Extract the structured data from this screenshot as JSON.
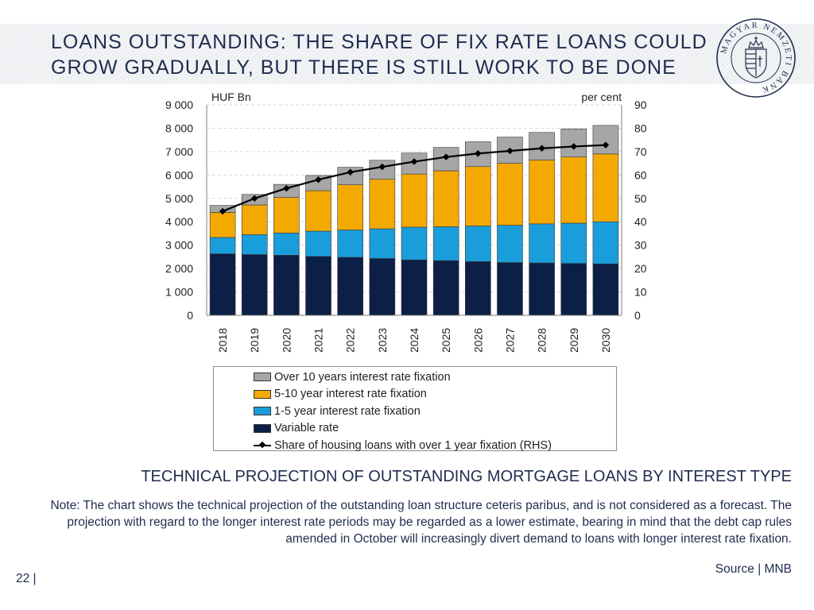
{
  "header": {
    "title": "LOANS OUTSTANDING: THE SHARE OF FIX RATE LOANS COULD GROW GRADUALLY, BUT THERE IS STILL WORK TO BE DONE"
  },
  "logo": {
    "text": "MAGYAR NEMZETI BANK"
  },
  "chart_subtitle": "TECHNICAL PROJECTION OF OUTSTANDING MORTGAGE LOANS BY INTEREST TYPE",
  "note": "Note: The chart shows the technical projection of the outstanding loan structure ceteris paribus, and is not considered as a forecast. The projection with regard to the longer interest rate periods may be regarded as a lower estimate, bearing in mind that the debt cap rules amended in October will increasingly divert demand to loans with longer interest rate fixation.",
  "source": "Source | MNB",
  "page_number": "22 |",
  "colors": {
    "variable": "#0c1f47",
    "fix_1_5": "#1a9ddb",
    "fix_5_10": "#f4a900",
    "fix_over_10": "#a6a6a6",
    "share_line": "#000000"
  },
  "chart_data": {
    "type": "bar",
    "stacked": true,
    "categories": [
      "2018",
      "2019",
      "2020",
      "2021",
      "2022",
      "2023",
      "2024",
      "2025",
      "2026",
      "2027",
      "2028",
      "2029",
      "2030"
    ],
    "ylabel_left": "HUF Bn",
    "ylabel_right": "per cent",
    "ylim_left": [
      0,
      9000
    ],
    "ylim_right": [
      0,
      90
    ],
    "yticks_left": [
      "0",
      "1 000",
      "2 000",
      "3 000",
      "4 000",
      "5 000",
      "6 000",
      "7 000",
      "8 000",
      "9 000"
    ],
    "yticks_right": [
      "0",
      "10",
      "20",
      "30",
      "40",
      "50",
      "60",
      "70",
      "80",
      "90"
    ],
    "gridlines": true,
    "legend_position": "bottom",
    "series": [
      {
        "name": "Variable rate",
        "color_key": "variable",
        "values": [
          2630,
          2600,
          2570,
          2520,
          2480,
          2430,
          2370,
          2340,
          2300,
          2260,
          2240,
          2220,
          2200
        ]
      },
      {
        "name": "1-5 year interest rate fixation",
        "color_key": "fix_1_5",
        "values": [
          700,
          850,
          950,
          1080,
          1170,
          1270,
          1400,
          1450,
          1520,
          1590,
          1670,
          1720,
          1800
        ]
      },
      {
        "name": "5-10 year interest rate fixation",
        "color_key": "fix_5_10",
        "values": [
          1070,
          1270,
          1520,
          1730,
          1930,
          2120,
          2270,
          2390,
          2540,
          2650,
          2730,
          2830,
          2900
        ]
      },
      {
        "name": "Over 10 years interest rate fixation",
        "color_key": "fix_over_10",
        "values": [
          300,
          450,
          560,
          650,
          750,
          810,
          900,
          1000,
          1060,
          1120,
          1180,
          1200,
          1220
        ]
      }
    ],
    "line_series": {
      "name": "Share of housing loans with over 1 year fixation (RHS)",
      "axis": "right",
      "values": [
        44.5,
        50.0,
        54.3,
        58.0,
        61.2,
        63.5,
        65.7,
        67.7,
        69.2,
        70.3,
        71.4,
        72.2,
        72.8
      ]
    },
    "legend_order": [
      "Over 10 years interest rate fixation",
      "5-10 year interest rate fixation",
      "1-5 year interest rate fixation",
      "Variable rate",
      "Share of housing loans with over 1 year fixation (RHS)"
    ]
  }
}
